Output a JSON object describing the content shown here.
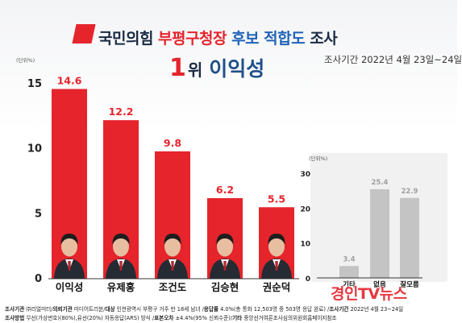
{
  "header": {
    "title_part1": "국민의힘",
    "title_part2": "부평구청장",
    "title_part3": "후보 적합도",
    "title_part4": "조사",
    "rank_number": "1",
    "rank_suffix": "위",
    "winner_name": "이익성",
    "survey_period": "조사기간 2022년 4월 23일~24일"
  },
  "colors": {
    "red": "#e5242c",
    "navy": "#1a2a44",
    "blue": "#1f63b8",
    "gray_bar": "#c4c4c4"
  },
  "chart_data": [
    {
      "type": "bar",
      "categories": [
        "이익성",
        "유제홍",
        "조건도",
        "김승현",
        "권순덕"
      ],
      "values": [
        14.6,
        12.2,
        9.8,
        6.2,
        5.5
      ],
      "value_labels": [
        "14.6",
        "12.2",
        "9.8",
        "6.2",
        "5.5"
      ],
      "unit_label": "(단위%)",
      "ylim": [
        0,
        15
      ],
      "yticks": [
        0,
        5,
        10,
        15
      ],
      "grid": false,
      "bar_color": "#e5242c",
      "portrait_icons": [
        "person-portrait-icon",
        "person-portrait-icon",
        "person-portrait-icon",
        "person-portrait-icon",
        "person-portrait-icon"
      ]
    },
    {
      "type": "bar",
      "categories": [
        "기타",
        "없음",
        "잘모름"
      ],
      "values": [
        3.4,
        25.4,
        22.9
      ],
      "value_labels": [
        "3.4",
        "25.4",
        "22.9"
      ],
      "unit_label": "(단위%)",
      "ylim": [
        0,
        30
      ],
      "yticks": [
        0,
        10,
        20,
        30
      ],
      "grid": false,
      "bar_color": "#c4c4c4"
    }
  ],
  "footnotes": {
    "line1": [
      {
        "b": "조사기관",
        "t": " ㈜리얼미터/"
      },
      {
        "b": "의뢰기관",
        "t": " 미디어트리뷴/"
      },
      {
        "b": "대상",
        "t": " 인천광역시 부평구 거주 만 18세 남녀 /"
      },
      {
        "b": "응답률",
        "t": " 4.0%(총 통화 12,503명 중 503명 응답 완료) /"
      },
      {
        "b": "조사기간",
        "t": " 2022년 4월 23~24일"
      }
    ],
    "line2": [
      {
        "b": "조사방법",
        "t": " 무선(가상번호)(80%),유선(20%) 자동응답(ARS) 방식 /"
      },
      {
        "b": "표본오차",
        "t": " ±4.4%(95% 신뢰수준)/"
      },
      {
        "b": "기타",
        "t": " 중앙선거여론조사심의위원회홈페이지참조"
      }
    ]
  },
  "watermark": "경인TV뉴스"
}
